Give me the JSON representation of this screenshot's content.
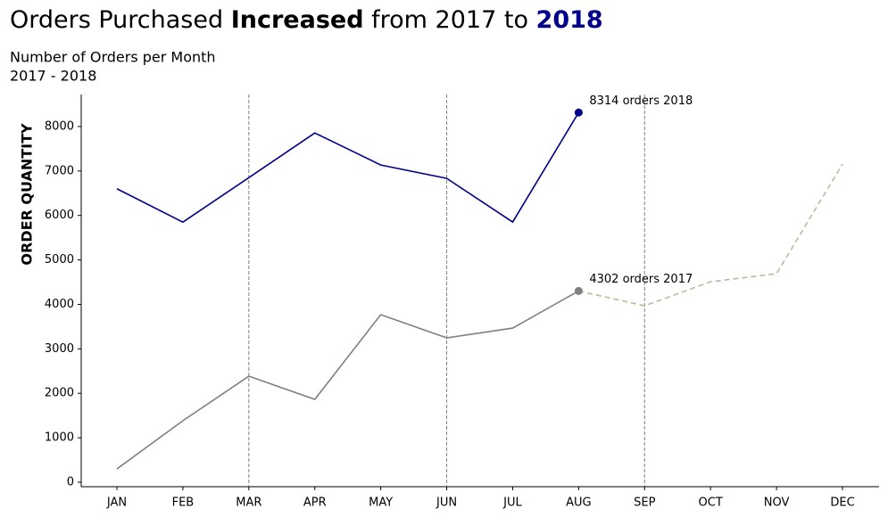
{
  "chart_data": {
    "type": "line",
    "title_parts": [
      "Orders Purchased ",
      "Increased",
      " from 2017 to ",
      "2018"
    ],
    "subtitle": [
      "Number of Orders per Month",
      "2017 - 2018"
    ],
    "y_label": "ORDER QUANTITY",
    "categories": [
      "JAN",
      "FEB",
      "MAR",
      "APR",
      "MAY",
      "JUN",
      "JUL",
      "AUG",
      "SEP",
      "OCT",
      "NOV",
      "DEC"
    ],
    "series": [
      {
        "color": "#00008b",
        "dash": false,
        "values": [
          6600,
          5850,
          6850,
          7855,
          7134,
          6834,
          5852,
          8314,
          null,
          null,
          null,
          null
        ]
      },
      {
        "color": "#808080",
        "dash": false,
        "values": [
          300,
          1383,
          2385,
          1864,
          3768,
          3247,
          3467,
          4302,
          null,
          null,
          null,
          null
        ]
      },
      {
        "color": "#bdb89c",
        "dash": true,
        "values": [
          null,
          null,
          null,
          null,
          null,
          null,
          null,
          4302,
          3968,
          4509,
          4689,
          7154
        ]
      }
    ],
    "annotations": [
      {
        "text": "8314 orders 2018",
        "series": 0,
        "index": 7,
        "color": "#00008b"
      },
      {
        "text": "4302 orders 2017",
        "series": 1,
        "index": 7,
        "color": "#808080"
      }
    ],
    "vlines": [
      "MAR",
      "JUN",
      "SEP"
    ],
    "ylim": [
      -100,
      8720
    ],
    "yticks": [
      0,
      1000,
      2000,
      3000,
      4000,
      5000,
      6000,
      7000,
      8000
    ]
  }
}
